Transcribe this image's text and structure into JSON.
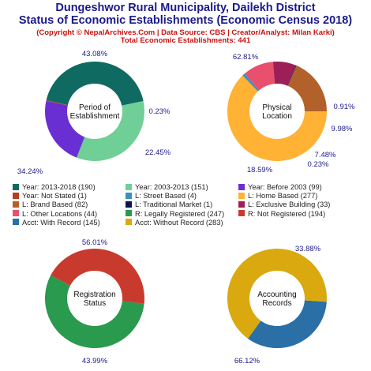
{
  "header": {
    "title_line1": "Dungeshwor Rural Municipality, Dailekh District",
    "title_line2": "Status of Economic Establishments (Economic Census 2018)",
    "credit": "(Copyright © NepalArchives.Com | Data Source: CBS | Creator/Analyst: Milan Karki)",
    "total": "Total Economic Establishments: 441"
  },
  "colors": {
    "title": "#1a1a8c",
    "credit": "#cc1111",
    "pct_label": "#1a1a8c"
  },
  "chart_data": [
    {
      "type": "pie",
      "center_label": [
        "Period of",
        "Establishment"
      ],
      "slices": [
        {
          "label": "Year: 2013-2018",
          "value": 190,
          "pct": "43.08%",
          "color": "#0f6b62"
        },
        {
          "label": "Year: 2003-2013",
          "value": 151,
          "pct": "34.24%",
          "color": "#6fcf97"
        },
        {
          "label": "Year: Before 2003",
          "value": 99,
          "pct": "22.45%",
          "color": "#6a2fd2"
        },
        {
          "label": "Year: Not Stated",
          "value": 1,
          "pct": "0.23%",
          "color": "#b83c1e"
        }
      ]
    },
    {
      "type": "pie",
      "center_label": [
        "Physical",
        "Location"
      ],
      "slices": [
        {
          "label": "L: Home Based",
          "value": 277,
          "pct": "62.81%",
          "color": "#ffb233"
        },
        {
          "label": "L: Street Based",
          "value": 4,
          "pct": "0.91%",
          "color": "#3b8fc6"
        },
        {
          "label": "L: Other Locations",
          "value": 44,
          "pct": "9.98%",
          "color": "#e8506e"
        },
        {
          "label": "L: Exclusive Building",
          "value": 33,
          "pct": "7.48%",
          "color": "#9c1f5a"
        },
        {
          "label": "L: Traditional Market",
          "value": 1,
          "pct": "0.23%",
          "color": "#12124f"
        },
        {
          "label": "L: Brand Based",
          "value": 82,
          "pct": "18.59%",
          "color": "#b3612a"
        }
      ]
    },
    {
      "type": "pie",
      "center_label": [
        "Registration",
        "Status"
      ],
      "slices": [
        {
          "label": "R: Legally Registered",
          "value": 247,
          "pct": "56.01%",
          "color": "#2a9a4e"
        },
        {
          "label": "R: Not Registered",
          "value": 194,
          "pct": "43.99%",
          "color": "#c83a2e"
        }
      ]
    },
    {
      "type": "pie",
      "center_label": [
        "Accounting",
        "Records"
      ],
      "slices": [
        {
          "label": "Acct: With Record",
          "value": 145,
          "pct": "33.88%",
          "color": "#2a6fa6"
        },
        {
          "label": "Acct: Without Record",
          "value": 283,
          "pct": "66.12%",
          "color": "#d9a90f"
        }
      ]
    }
  ],
  "legend": [
    {
      "text": "Year: 2013-2018 (190)",
      "color": "#0f6b62"
    },
    {
      "text": "Year: 2003-2013 (151)",
      "color": "#6fcf97"
    },
    {
      "text": "Year: Before 2003 (99)",
      "color": "#6a2fd2"
    },
    {
      "text": "Year: Not Stated (1)",
      "color": "#b83c1e"
    },
    {
      "text": "L: Street Based (4)",
      "color": "#3b8fc6"
    },
    {
      "text": "L: Home Based (277)",
      "color": "#ffb233"
    },
    {
      "text": "L: Brand Based (82)",
      "color": "#b3612a"
    },
    {
      "text": "L: Traditional Market (1)",
      "color": "#12124f"
    },
    {
      "text": "L: Exclusive Building (33)",
      "color": "#9c1f5a"
    },
    {
      "text": "L: Other Locations (44)",
      "color": "#e8506e"
    },
    {
      "text": "R: Legally Registered (247)",
      "color": "#2a9a4e"
    },
    {
      "text": "R: Not Registered (194)",
      "color": "#c83a2e"
    },
    {
      "text": "Acct: With Record (145)",
      "color": "#2a6fa6"
    },
    {
      "text": "Acct: Without Record (283)",
      "color": "#d9a90f"
    }
  ]
}
